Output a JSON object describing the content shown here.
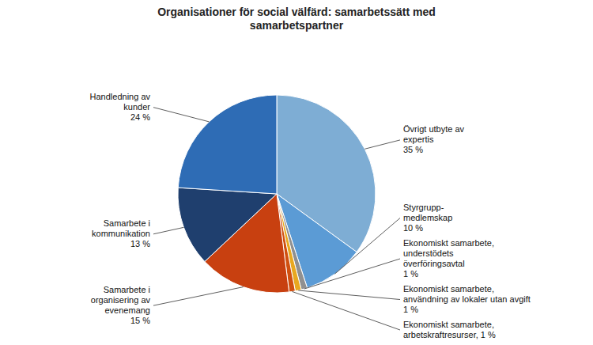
{
  "chart_data": {
    "type": "pie",
    "title": "Organisationer för social välfärd: samarbetssätt med\nsamarbetspartner",
    "categories": [
      "Övrigt utbyte av\nexpertis\n35 %",
      "Styrgrupp-\nmedlemskap\n10 %",
      "Ekonomiskt samarbete,\nunderstödets\növerföringsavtal\n1 %",
      "Ekonomiskt samarbete,\nanvändning av lokaler utan avgift\n1 %",
      "Ekonomiskt samarbete,\narbetskraftresurser, 1 %",
      "Samarbete i\norganisering av\nevenemang\n15 %",
      "Samarbete i\nkommunikation\n13 %",
      "Handledning av\nkunder\n24 %"
    ],
    "values": [
      35,
      10,
      1,
      1,
      1,
      15,
      13,
      24
    ],
    "colors": [
      "#7EADD4",
      "#5B9BD5",
      "#909090",
      "#E8A820",
      "#D05010",
      "#C84010",
      "#1F3F6E",
      "#2E6CB5"
    ]
  }
}
